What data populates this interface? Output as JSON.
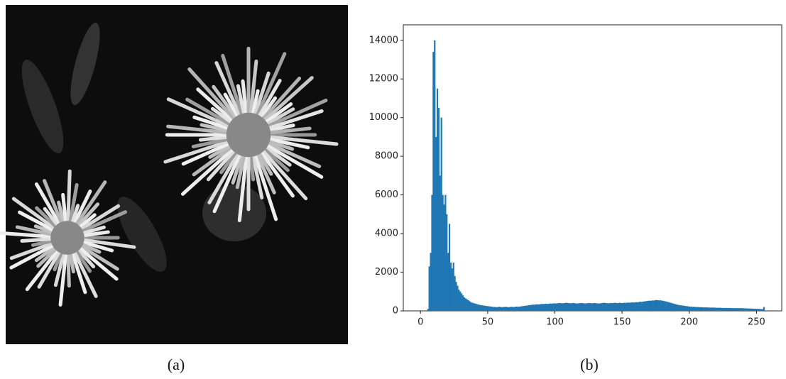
{
  "captions": [
    "(a)",
    "(b)"
  ],
  "chart_data": {
    "type": "histogram",
    "color": "#1f77b4",
    "xlim": [
      -12.8,
      268.8
    ],
    "ylim": [
      0,
      14800
    ],
    "xticks": [
      0,
      50,
      100,
      150,
      200,
      250
    ],
    "yticks": [
      0,
      2000,
      4000,
      6000,
      8000,
      10000,
      12000,
      14000
    ],
    "bins": [
      0,
      1,
      2,
      3,
      4,
      5,
      6,
      7,
      8,
      9,
      10,
      11,
      12,
      13,
      14,
      15,
      16,
      17,
      18,
      19,
      20,
      21,
      22,
      23,
      24,
      25,
      26,
      27,
      28,
      29,
      30,
      31,
      32,
      33,
      34,
      35,
      36,
      37,
      38,
      39,
      40,
      41,
      42,
      43,
      44,
      45,
      46,
      47,
      48,
      49,
      50,
      51,
      52,
      53,
      54,
      55,
      56,
      57,
      58,
      59,
      60,
      61,
      62,
      63,
      64,
      65,
      66,
      67,
      68,
      69,
      70,
      71,
      72,
      73,
      74,
      75,
      76,
      77,
      78,
      79,
      80,
      81,
      82,
      83,
      84,
      85,
      86,
      87,
      88,
      89,
      90,
      91,
      92,
      93,
      94,
      95,
      96,
      97,
      98,
      99,
      100,
      101,
      102,
      103,
      104,
      105,
      106,
      107,
      108,
      109,
      110,
      111,
      112,
      113,
      114,
      115,
      116,
      117,
      118,
      119,
      120,
      121,
      122,
      123,
      124,
      125,
      126,
      127,
      128,
      129,
      130,
      131,
      132,
      133,
      134,
      135,
      136,
      137,
      138,
      139,
      140,
      141,
      142,
      143,
      144,
      145,
      146,
      147,
      148,
      149,
      150,
      151,
      152,
      153,
      154,
      155,
      156,
      157,
      158,
      159,
      160,
      161,
      162,
      163,
      164,
      165,
      166,
      167,
      168,
      169,
      170,
      171,
      172,
      173,
      174,
      175,
      176,
      177,
      178,
      179,
      180,
      181,
      182,
      183,
      184,
      185,
      186,
      187,
      188,
      189,
      190,
      191,
      192,
      193,
      194,
      195,
      196,
      197,
      198,
      199,
      200,
      201,
      202,
      203,
      204,
      205,
      206,
      207,
      208,
      209,
      210,
      211,
      212,
      213,
      214,
      215,
      216,
      217,
      218,
      219,
      220,
      221,
      222,
      223,
      224,
      225,
      226,
      227,
      228,
      229,
      230,
      231,
      232,
      233,
      234,
      235,
      236,
      237,
      238,
      239,
      240,
      241,
      242,
      243,
      244,
      245,
      246,
      247,
      248,
      249,
      250,
      251,
      252,
      253,
      254,
      255,
      256
    ],
    "counts": [
      0,
      0,
      0,
      0,
      0,
      100,
      2300,
      3000,
      6000,
      13400,
      14000,
      9000,
      11500,
      10500,
      7000,
      10000,
      6000,
      5500,
      6000,
      5000,
      3000,
      4500,
      2500,
      2200,
      2500,
      1800,
      1500,
      1300,
      1100,
      1000,
      900,
      800,
      700,
      650,
      600,
      550,
      500,
      450,
      420,
      400,
      380,
      360,
      340,
      320,
      300,
      290,
      280,
      270,
      260,
      250,
      240,
      230,
      220,
      210,
      200,
      200,
      190,
      200,
      210,
      200,
      190,
      200,
      200,
      210,
      200,
      190,
      200,
      210,
      200,
      200,
      210,
      220,
      210,
      220,
      230,
      240,
      250,
      260,
      270,
      280,
      290,
      300,
      310,
      320,
      320,
      330,
      340,
      330,
      340,
      350,
      360,
      350,
      360,
      370,
      360,
      370,
      380,
      370,
      380,
      390,
      380,
      390,
      400,
      410,
      400,
      390,
      400,
      410,
      420,
      410,
      400,
      390,
      400,
      410,
      400,
      390,
      380,
      390,
      400,
      410,
      400,
      390,
      380,
      390,
      400,
      410,
      400,
      390,
      400,
      410,
      400,
      390,
      380,
      390,
      400,
      410,
      420,
      410,
      400,
      390,
      400,
      410,
      400,
      410,
      420,
      410,
      400,
      410,
      420,
      400,
      410,
      420,
      410,
      420,
      430,
      420,
      430,
      440,
      430,
      440,
      450,
      440,
      460,
      470,
      460,
      480,
      490,
      500,
      510,
      520,
      530,
      520,
      540,
      530,
      550,
      560,
      550,
      540,
      550,
      530,
      520,
      500,
      490,
      470,
      450,
      430,
      410,
      390,
      370,
      350,
      330,
      310,
      300,
      290,
      280,
      270,
      260,
      250,
      240,
      230,
      220,
      220,
      210,
      210,
      200,
      200,
      200,
      190,
      190,
      190,
      180,
      180,
      180,
      180,
      170,
      170,
      170,
      170,
      170,
      160,
      160,
      160,
      160,
      160,
      150,
      150,
      150,
      150,
      150,
      150,
      150,
      140,
      140,
      140,
      140,
      140,
      140,
      140,
      140,
      140,
      130,
      130,
      130,
      120,
      120,
      120,
      120,
      110,
      110,
      110,
      100,
      100,
      100,
      90,
      90,
      200
    ]
  }
}
